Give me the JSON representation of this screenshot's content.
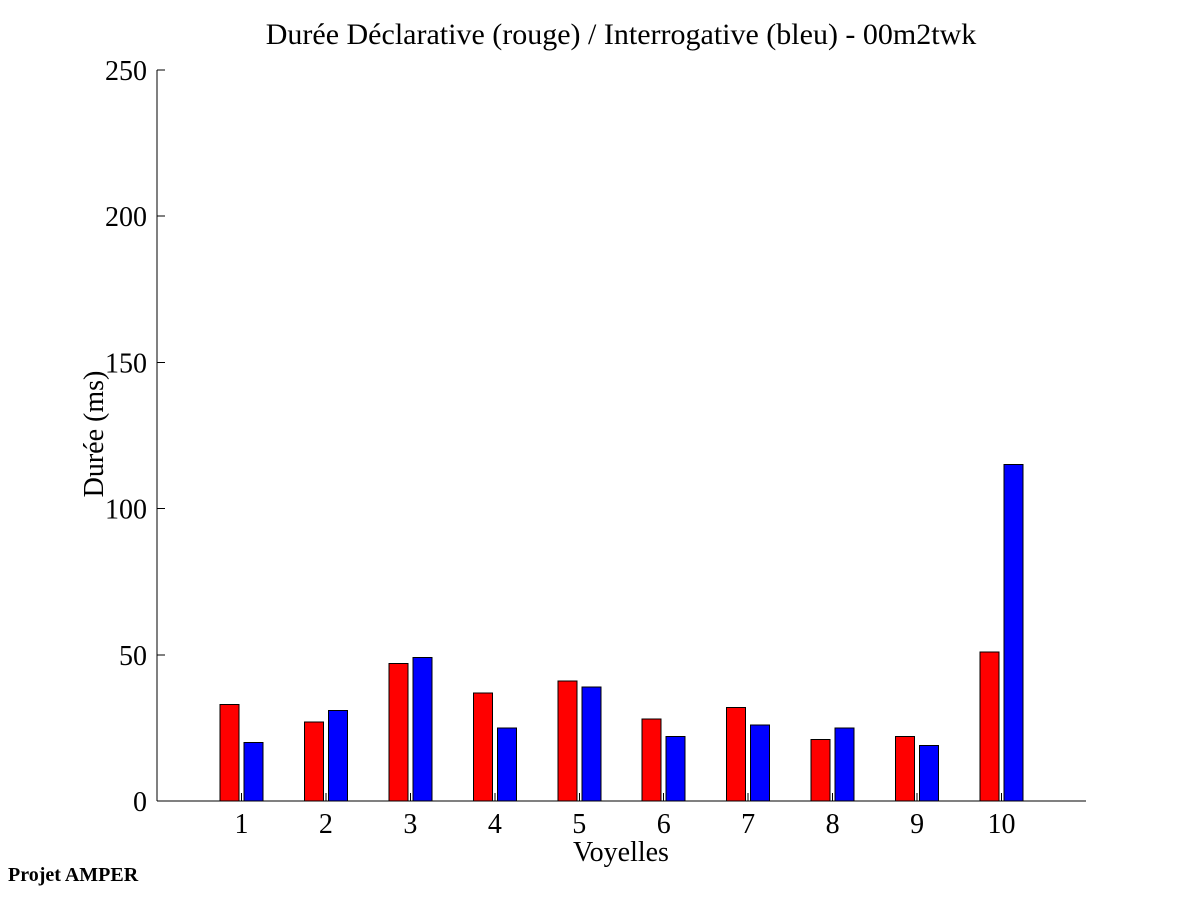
{
  "chart_data": {
    "type": "bar",
    "title": "Durée Déclarative (rouge) / Interrogative (bleu) - 00m2twk",
    "xlabel": "Voyelles",
    "ylabel": "Durée (ms)",
    "categories": [
      "1",
      "2",
      "3",
      "4",
      "5",
      "6",
      "7",
      "8",
      "9",
      "10"
    ],
    "series": [
      {
        "id": "declarative",
        "name": "Déclarative (rouge)",
        "color": "#ff0000",
        "values": [
          33,
          27,
          47,
          37,
          41,
          28,
          32,
          21,
          22,
          51
        ]
      },
      {
        "id": "interrogative",
        "name": "Interrogative (bleu)",
        "color": "#0000ff",
        "values": [
          20,
          31,
          49,
          25,
          39,
          22,
          26,
          25,
          19,
          115
        ]
      }
    ],
    "ylim": [
      0,
      250
    ],
    "yticks": [
      0,
      50,
      100,
      150,
      200,
      250
    ],
    "xlim": [
      0,
      11
    ],
    "grid": false,
    "legend": "none",
    "bar_edge_color": "#000000",
    "axis_color": "#000000",
    "background_color": "#ffffff"
  },
  "footer": {
    "label": "Projet AMPER"
  }
}
